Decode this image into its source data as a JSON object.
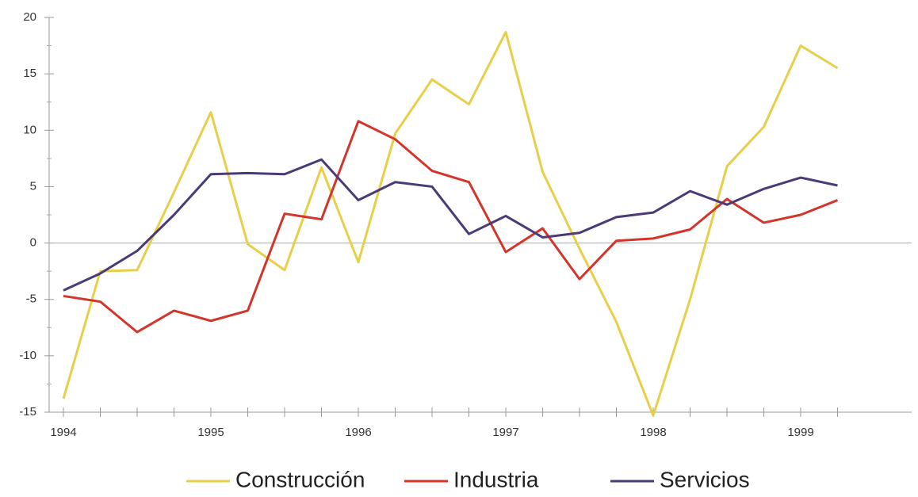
{
  "chart_data": {
    "type": "line",
    "categories": [
      "1994",
      null,
      null,
      null,
      "1995",
      null,
      null,
      null,
      "1996",
      null,
      null,
      null,
      "1997",
      null,
      null,
      null,
      "1998",
      null,
      null,
      null,
      "1999",
      null
    ],
    "series": [
      {
        "name": "Construcción",
        "color": "#e8cf4a",
        "values": [
          -13.8,
          -2.5,
          -2.4,
          4.5,
          11.6,
          -0.1,
          -2.4,
          6.7,
          -1.7,
          9.7,
          14.5,
          12.3,
          18.7,
          6.3,
          -0.5,
          -7,
          -15.3,
          -5,
          6.8,
          10.3,
          17.5,
          15.5
        ]
      },
      {
        "name": "Industria",
        "color": "#d4352b",
        "values": [
          -4.7,
          -5.2,
          -7.9,
          -6,
          -6.9,
          -6,
          2.6,
          2.1,
          10.8,
          9.2,
          6.4,
          5.4,
          -0.8,
          1.3,
          -3.2,
          0.2,
          0.4,
          1.2,
          3.9,
          1.8,
          2.5,
          3.8
        ]
      },
      {
        "name": "Servicios",
        "color": "#4b3a78",
        "values": [
          -4.2,
          -2.7,
          -0.7,
          2.5,
          6.1,
          6.2,
          6.1,
          7.4,
          3.8,
          5.4,
          5.0,
          0.8,
          2.4,
          0.5,
          0.9,
          2.3,
          2.7,
          4.6,
          3.4,
          4.8,
          5.8,
          5.1
        ]
      }
    ],
    "ylim": [
      -15,
      20
    ],
    "yticks": [
      -15,
      -10,
      -5,
      0,
      5,
      10,
      15,
      20
    ]
  }
}
